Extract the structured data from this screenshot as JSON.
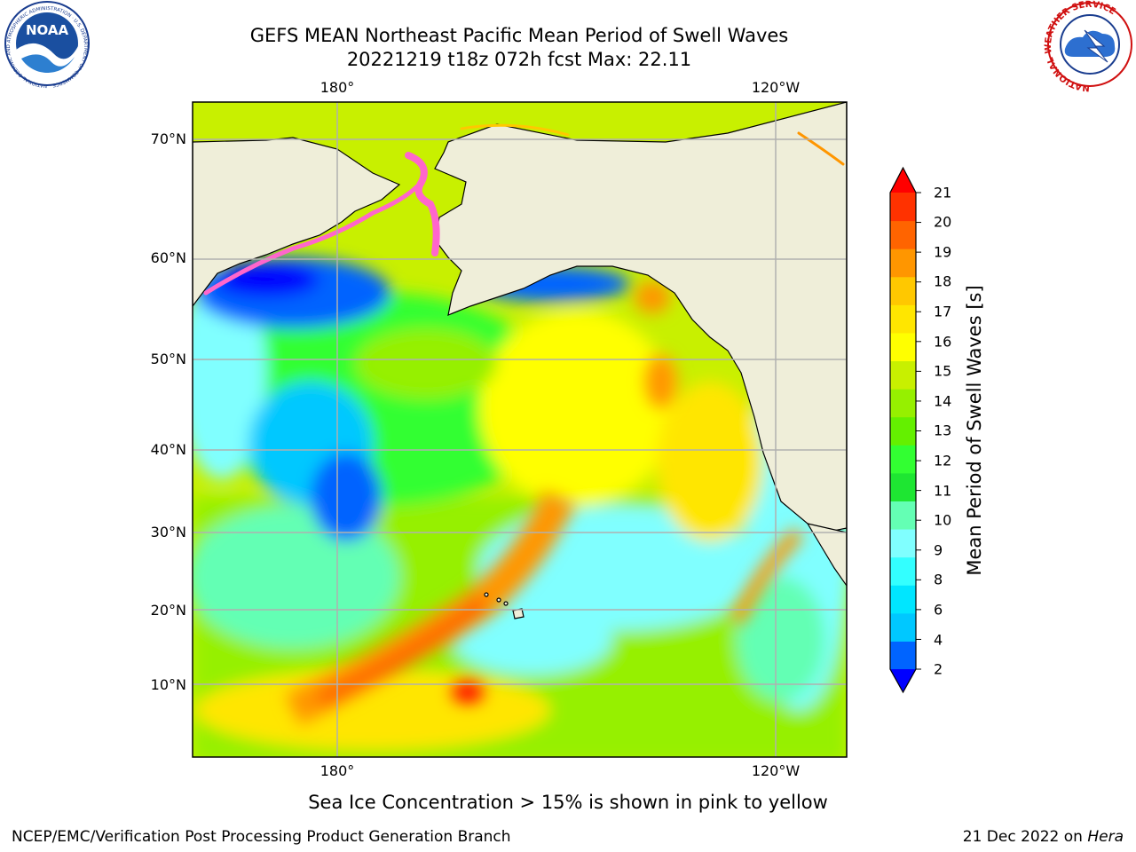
{
  "title": {
    "line1": "GEFS MEAN Northeast Pacific Mean Period of Swell Waves",
    "line2": "20221219 t18z 072h fcst   Max: 22.11"
  },
  "map": {
    "lon_ticks": [
      "180°",
      "120°W"
    ],
    "lat_ticks": [
      "70°N",
      "60°N",
      "50°N",
      "40°N",
      "30°N",
      "20°N",
      "10°N"
    ],
    "land_color": "#efeed9",
    "grid_color": "#b0b0b0"
  },
  "colorbar": {
    "label": "Mean Period of Swell Waves [s]",
    "ticks": [
      "21",
      "20",
      "19",
      "18",
      "17",
      "16",
      "15",
      "14",
      "13",
      "12",
      "11",
      "10",
      "9",
      "8",
      "6",
      "4",
      "2"
    ],
    "colors": [
      "#0000ff",
      "#0064ff",
      "#00c8ff",
      "#00e6ff",
      "#33ffff",
      "#80ffff",
      "#64ffb4",
      "#1ee632",
      "#32ff32",
      "#64f000",
      "#96f000",
      "#c8f000",
      "#ffff00",
      "#ffe600",
      "#ffc800",
      "#ff9600",
      "#ff6400",
      "#ff3200",
      "#ff0000"
    ]
  },
  "caption": "Sea Ice Concentration > 15% is shown in pink to yellow",
  "footer": {
    "left": "NCEP/EMC/Verification Post Processing Product Generation Branch",
    "right_prefix": "21 Dec 2022 on ",
    "right_host": "Hera"
  },
  "logos": {
    "noaa_text": "NOAA",
    "noaa_ring": "NATIONAL OCEANIC AND ATMOSPHERIC ADMINISTRATION · U.S. DEPARTMENT OF COMMERCE",
    "nws_ring": "NATIONAL WEATHER SERVICE"
  }
}
